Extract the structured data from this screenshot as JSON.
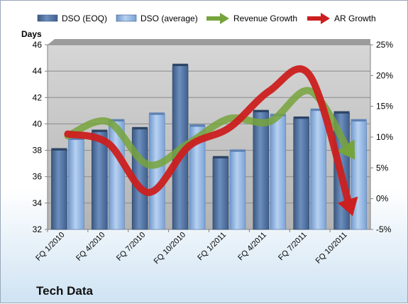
{
  "chart_data": {
    "type": "bar",
    "title": "Tech Data",
    "ylabel": "Days",
    "ylim": [
      32,
      46
    ],
    "y2lim": [
      -5,
      25
    ],
    "y2_format": "percent",
    "categories": [
      "FQ 1/2010",
      "FQ 4/2010",
      "FQ 7/2010",
      "FQ 10/2010",
      "FQ 1/2011",
      "FQ 4/2011",
      "FQ 7/2011",
      "FQ 10/2011"
    ],
    "series": [
      {
        "name": "DSO (EOQ)",
        "type": "bar",
        "axis": "left",
        "color": "#4a6b9c",
        "values": [
          38.0,
          39.4,
          39.6,
          44.4,
          37.4,
          40.9,
          40.4,
          40.8
        ]
      },
      {
        "name": "DSO (average)",
        "type": "bar",
        "axis": "left",
        "color": "#8fb4e3",
        "values": [
          38.8,
          40.2,
          40.7,
          39.8,
          37.9,
          40.6,
          41.0,
          40.2
        ]
      },
      {
        "name": "Revenue Growth",
        "type": "line-arrow",
        "axis": "right",
        "color": "#77a33c",
        "values": [
          10.2,
          12.5,
          5.5,
          9.0,
          13.0,
          12.5,
          17.5,
          7.5
        ]
      },
      {
        "name": "AR Growth",
        "type": "line-arrow",
        "axis": "right",
        "color": "#cc1f1f",
        "values": [
          10.5,
          9.0,
          1.0,
          8.5,
          11.5,
          17.5,
          20.0,
          -1.5
        ]
      }
    ],
    "y_ticks": [
      32,
      34,
      36,
      38,
      40,
      42,
      44,
      46
    ],
    "y2_ticks": [
      -5,
      0,
      5,
      10,
      15,
      20,
      25
    ],
    "grid": true,
    "legend": "top",
    "plot_background": "#c0c0c0"
  }
}
